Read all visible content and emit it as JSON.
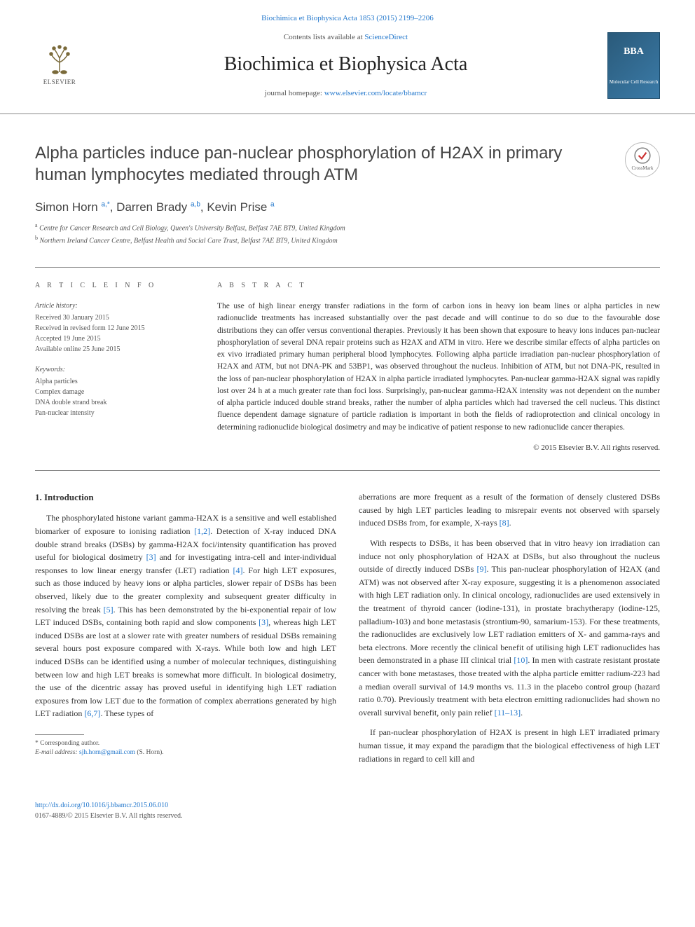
{
  "header": {
    "citation_link": "Biochimica et Biophysica Acta 1853 (2015) 2199–2206",
    "contents_prefix": "Contents lists available at ",
    "contents_link": "ScienceDirect",
    "journal_title": "Biochimica et Biophysica Acta",
    "homepage_prefix": "journal homepage: ",
    "homepage_url": "www.elsevier.com/locate/bbamcr",
    "elsevier_label": "ELSEVIER",
    "bba_label_top": "BBA",
    "bba_label_bottom": "Molecular Cell Research",
    "crossmark_label": "CrossMark"
  },
  "article": {
    "title": "Alpha particles induce pan-nuclear phosphorylation of H2AX in primary human lymphocytes mediated through ATM",
    "authors_html": "Simon Horn <sup>a,*</sup>, Darren Brady <sup>a,b</sup>, Kevin Prise <sup>a</sup>",
    "affiliations": [
      {
        "sup": "a",
        "text": "Centre for Cancer Research and Cell Biology, Queen's University Belfast, Belfast 7AE BT9, United Kingdom"
      },
      {
        "sup": "b",
        "text": "Northern Ireland Cancer Centre, Belfast Health and Social Care Trust, Belfast 7AE BT9, United Kingdom"
      }
    ]
  },
  "info": {
    "heading": "A R T I C L E   I N F O",
    "history_label": "Article history:",
    "history": [
      "Received 30 January 2015",
      "Received in revised form 12 June 2015",
      "Accepted 19 June 2015",
      "Available online 25 June 2015"
    ],
    "keywords_label": "Keywords:",
    "keywords": [
      "Alpha particles",
      "Complex damage",
      "DNA double strand break",
      "Pan-nuclear intensity"
    ]
  },
  "abstract": {
    "heading": "A B S T R A C T",
    "text": "The use of high linear energy transfer radiations in the form of carbon ions in heavy ion beam lines or alpha particles in new radionuclide treatments has increased substantially over the past decade and will continue to do so due to the favourable dose distributions they can offer versus conventional therapies. Previously it has been shown that exposure to heavy ions induces pan-nuclear phosphorylation of several DNA repair proteins such as H2AX and ATM in vitro. Here we describe similar effects of alpha particles on ex vivo irradiated primary human peripheral blood lymphocytes. Following alpha particle irradiation pan-nuclear phosphorylation of H2AX and ATM, but not DNA-PK and 53BP1, was observed throughout the nucleus. Inhibition of ATM, but not DNA-PK, resulted in the loss of pan-nuclear phosphorylation of H2AX in alpha particle irradiated lymphocytes. Pan-nuclear gamma-H2AX signal was rapidly lost over 24 h at a much greater rate than foci loss. Surprisingly, pan-nuclear gamma-H2AX intensity was not dependent on the number of alpha particle induced double strand breaks, rather the number of alpha particles which had traversed the cell nucleus. This distinct fluence dependent damage signature of particle radiation is important in both the fields of radioprotection and clinical oncology in determining radionuclide biological dosimetry and may be indicative of patient response to new radionuclide cancer therapies.",
    "copyright": "© 2015 Elsevier B.V. All rights reserved."
  },
  "body": {
    "intro_head": "1. Introduction",
    "left_p1": "The phosphorylated histone variant gamma-H2AX is a sensitive and well established biomarker of exposure to ionising radiation [1,2]. Detection of X-ray induced DNA double strand breaks (DSBs) by gamma-H2AX foci/intensity quantification has proved useful for biological dosimetry [3] and for investigating intra-cell and inter-individual responses to low linear energy transfer (LET) radiation [4]. For high LET exposures, such as those induced by heavy ions or alpha particles, slower repair of DSBs has been observed, likely due to the greater complexity and subsequent greater difficulty in resolving the break [5]. This has been demonstrated by the bi-exponential repair of low LET induced DSBs, containing both rapid and slow components [3], whereas high LET induced DSBs are lost at a slower rate with greater numbers of residual DSBs remaining several hours post exposure compared with X-rays. While both low and high LET induced DSBs can be identified using a number of molecular techniques, distinguishing between low and high LET breaks is somewhat more difficult. In biological dosimetry, the use of the dicentric assay has proved useful in identifying high LET radiation exposures from low LET due to the formation of complex aberrations generated by high LET radiation [6,7]. These types of",
    "right_p1": "aberrations are more frequent as a result of the formation of densely clustered DSBs caused by high LET particles leading to misrepair events not observed with sparsely induced DSBs from, for example, X-rays [8].",
    "right_p2": "With respects to DSBs, it has been observed that in vitro heavy ion irradiation can induce not only phosphorylation of H2AX at DSBs, but also throughout the nucleus outside of directly induced DSBs [9]. This pan-nuclear phosphorylation of H2AX (and ATM) was not observed after X-ray exposure, suggesting it is a phenomenon associated with high LET radiation only. In clinical oncology, radionuclides are used extensively in the treatment of thyroid cancer (iodine-131), in prostate brachytherapy (iodine-125, palladium-103) and bone metastasis (strontium-90, samarium-153). For these treatments, the radionuclides are exclusively low LET radiation emitters of X- and gamma-rays and beta electrons. More recently the clinical benefit of utilising high LET radionuclides has been demonstrated in a phase III clinical trial [10]. In men with castrate resistant prostate cancer with bone metastases, those treated with the alpha particle emitter radium-223 had a median overall survival of 14.9 months vs. 11.3 in the placebo control group (hazard ratio 0.70). Previously treatment with beta electron emitting radionuclides had shown no overall survival benefit, only pain relief [11–13].",
    "right_p3": "If pan-nuclear phosphorylation of H2AX is present in high LET irradiated primary human tissue, it may expand the paradigm that the biological effectiveness of high LET radiations in regard to cell kill and"
  },
  "footnote": {
    "corresponding": "* Corresponding author.",
    "email_label": "E-mail address: ",
    "email": "sjh.horn@gmail.com",
    "email_suffix": " (S. Horn)."
  },
  "footer": {
    "doi": "http://dx.doi.org/10.1016/j.bbamcr.2015.06.010",
    "issn_line": "0167-4889/© 2015 Elsevier B.V. All rights reserved."
  },
  "colors": {
    "link": "#2277cc",
    "text": "#333333",
    "muted": "#555555",
    "rule": "#888888"
  }
}
